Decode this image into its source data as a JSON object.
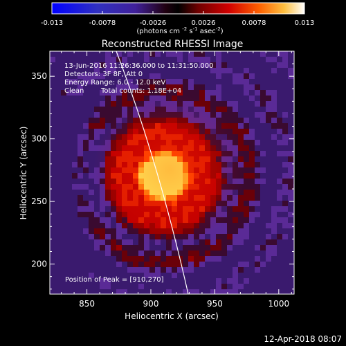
{
  "colorbar": {
    "tick_labels": [
      "-0.013",
      "-0.0078",
      "-0.0026",
      "0.0026",
      "0.0078",
      "0.013"
    ],
    "units_main": "(photons cm",
    "units_exp1": "-2",
    "units_mid": " s",
    "units_exp2": "-1",
    "units_tail": " asec",
    "units_exp3": "-2",
    "units_close": ")"
  },
  "title": "Reconstructed RHESSI Image",
  "annotations": {
    "time_range": "13-Jun-2016 11:26:36.000 to 11:31:50.000",
    "detectors": "Detectors: 3F 8F, Att 0",
    "energy": "Energy Range: 6.0 - 12.0 keV",
    "clean": "Clean",
    "total_counts": "Total counts: 1.18E+04",
    "peak": "Position of Peak = [910,270]"
  },
  "axes": {
    "xlabel": "Heliocentric X (arcsec)",
    "ylabel": "Heliocentric Y (arcsec)",
    "x_ticks": [
      "850",
      "900",
      "950",
      "1000"
    ],
    "y_ticks": [
      "200",
      "250",
      "300",
      "350"
    ],
    "x_range": [
      821,
      1012
    ],
    "y_range": [
      176,
      370
    ]
  },
  "footer_date": "12-Apr-2018 08:07",
  "colors": {
    "background": "#000000",
    "text": "#ffffff",
    "low": "#5a2a96",
    "peak": "#ffff60"
  }
}
